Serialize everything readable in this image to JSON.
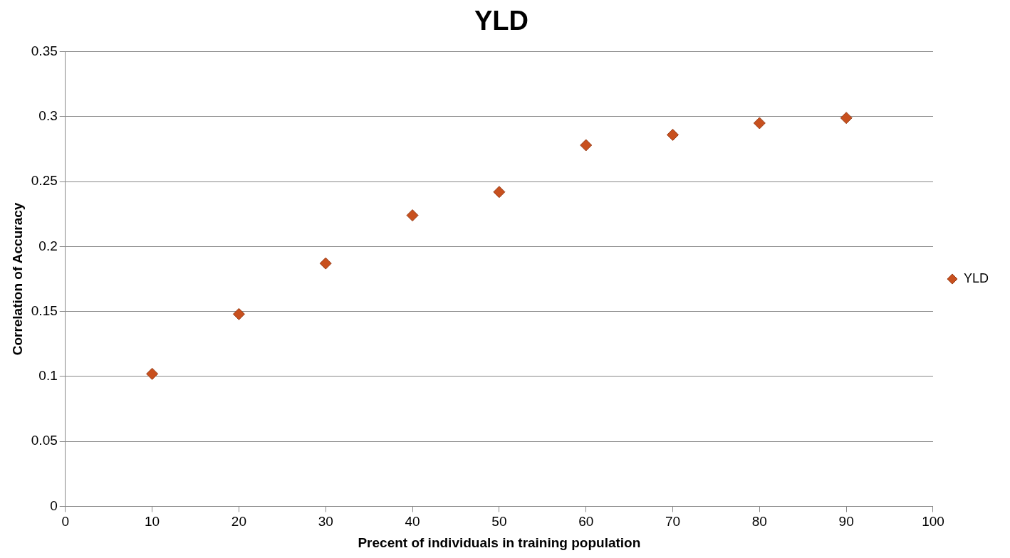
{
  "chart_data": {
    "type": "scatter",
    "title": "YLD",
    "xlabel": "Precent of individuals in training population",
    "ylabel": "Correlation of Accuracy",
    "x": [
      10,
      20,
      30,
      40,
      50,
      60,
      70,
      80,
      90
    ],
    "series": [
      {
        "name": "YLD",
        "color": "#c8501e",
        "values": [
          0.102,
          0.148,
          0.187,
          0.224,
          0.242,
          0.278,
          0.286,
          0.295,
          0.299
        ]
      }
    ],
    "xlim": [
      0,
      100
    ],
    "xticks": [
      0,
      10,
      20,
      30,
      40,
      50,
      60,
      70,
      80,
      90,
      100
    ],
    "ylim": [
      0,
      0.35
    ],
    "yticks": [
      0,
      0.05,
      0.1,
      0.15,
      0.2,
      0.25,
      0.3,
      0.35
    ],
    "grid": "y",
    "legend": "right",
    "marker": "diamond"
  }
}
